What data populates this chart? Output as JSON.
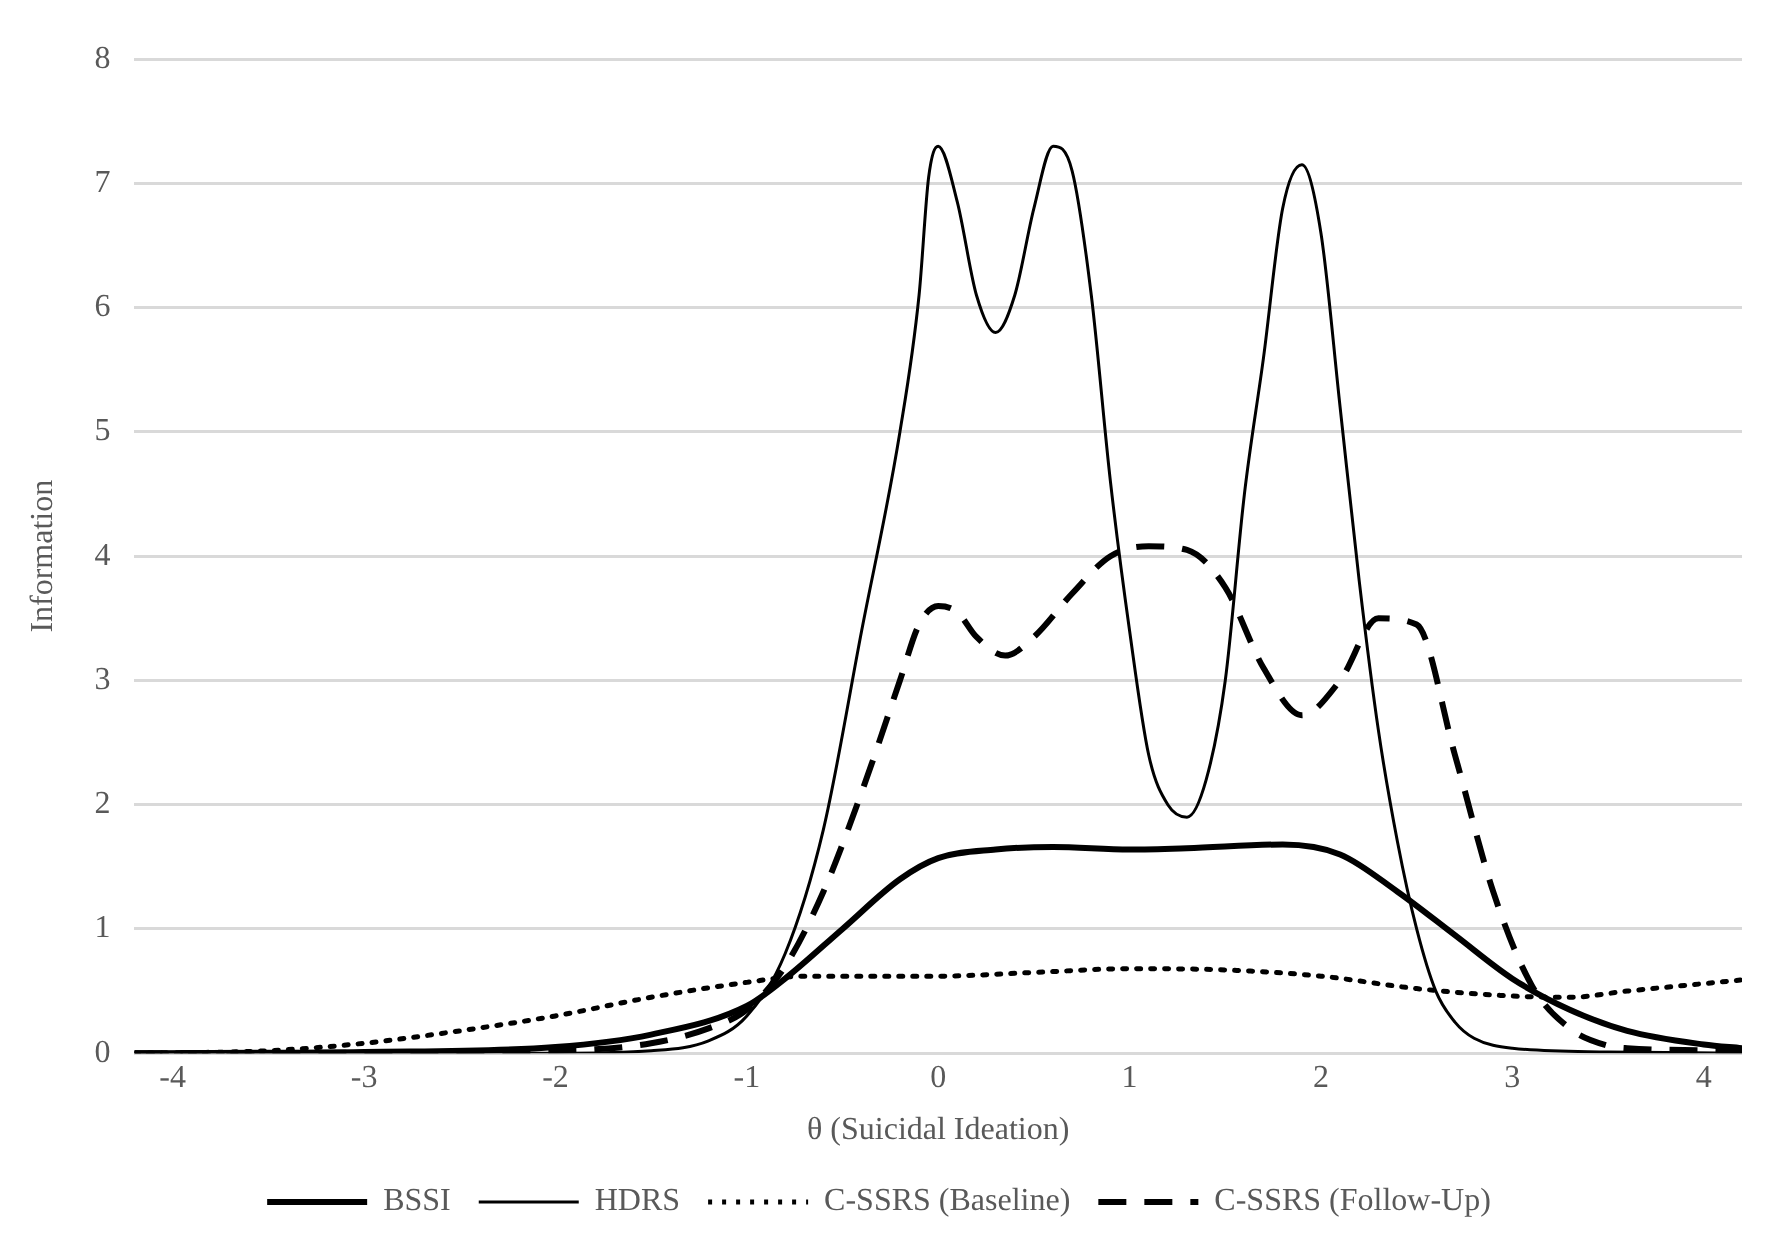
{
  "chart_data": {
    "type": "line",
    "xlabel": "θ (Suicidal Ideation)",
    "ylabel": "Information",
    "xlim": [
      -4.2,
      4.2
    ],
    "xticks": [
      -4,
      -3,
      -2,
      -1,
      0,
      1,
      2,
      3,
      4
    ],
    "ylim": [
      0,
      8
    ],
    "yticks": [
      0,
      1,
      2,
      3,
      4,
      5,
      6,
      7,
      8
    ],
    "grid": "y",
    "legend": "bottom",
    "marker": "none",
    "series": [
      {
        "name": "BSSI",
        "color": "#000000",
        "line_style": "solid",
        "x": [
          -4.2,
          -3,
          -2,
          -1.5,
          -1,
          -0.8,
          -0.5,
          -0.2,
          0,
          0.3,
          0.6,
          1,
          1.3,
          1.8,
          2.1,
          2.4,
          2.7,
          3,
          3.3,
          3.6,
          4,
          4.2
        ],
        "values": [
          0,
          0.01,
          0.05,
          0.15,
          0.38,
          0.6,
          1,
          1.4,
          1.57,
          1.64,
          1.66,
          1.64,
          1.65,
          1.68,
          1.6,
          1.3,
          0.95,
          0.6,
          0.35,
          0.18,
          0.07,
          0.04
        ]
      },
      {
        "name": "HDRS",
        "color": "#000000",
        "line_style": "solid",
        "x": [
          -4.2,
          -2,
          -1.5,
          -1.2,
          -1,
          -0.8,
          -0.6,
          -0.4,
          -0.2,
          -0.1,
          -0.05,
          0,
          0.1,
          0.2,
          0.3,
          0.4,
          0.5,
          0.6,
          0.7,
          0.8,
          0.9,
          1,
          1.1,
          1.2,
          1.3,
          1.4,
          1.5,
          1.6,
          1.7,
          1.8,
          1.9,
          2,
          2.1,
          2.2,
          2.3,
          2.4,
          2.5,
          2.6,
          2.7,
          2.8,
          3,
          3.5,
          4.2
        ],
        "values": [
          0,
          0,
          0.02,
          0.1,
          0.3,
          0.8,
          1.8,
          3.4,
          5,
          6.1,
          7.05,
          7.3,
          6.85,
          6.1,
          5.8,
          6.1,
          6.8,
          7.3,
          7.1,
          6.1,
          4.6,
          3.4,
          2.4,
          2,
          1.9,
          2.2,
          3,
          4.5,
          5.6,
          6.8,
          7.15,
          6.6,
          5.2,
          3.8,
          2.6,
          1.7,
          1,
          0.5,
          0.25,
          0.12,
          0.04,
          0.01,
          0
        ]
      },
      {
        "name": "C-SSRS (Baseline)",
        "color": "#000000",
        "line_style": "dotted",
        "x": [
          -4.2,
          -3.5,
          -3,
          -2.5,
          -2,
          -1.5,
          -1,
          -0.7,
          0,
          0.5,
          1,
          1.5,
          2,
          2.5,
          3,
          3.3,
          3.6,
          4,
          4.2
        ],
        "values": [
          0,
          0.02,
          0.08,
          0.18,
          0.3,
          0.45,
          0.57,
          0.62,
          0.62,
          0.65,
          0.68,
          0.67,
          0.62,
          0.52,
          0.46,
          0.45,
          0.5,
          0.56,
          0.59
        ]
      },
      {
        "name": "C-SSRS (Follow-Up)",
        "color": "#000000",
        "line_style": "dashed",
        "x": [
          -4.2,
          -2,
          -1.5,
          -1.2,
          -1,
          -0.8,
          -0.6,
          -0.4,
          -0.2,
          -0.1,
          0,
          0.1,
          0.2,
          0.35,
          0.5,
          0.7,
          0.9,
          1.1,
          1.3,
          1.5,
          1.7,
          1.9,
          2.1,
          2.3,
          2.5,
          2.7,
          2.9,
          3.1,
          3.3,
          3.5,
          3.6,
          4.2
        ],
        "values": [
          0,
          0.02,
          0.08,
          0.2,
          0.35,
          0.7,
          1.3,
          2.1,
          3,
          3.45,
          3.6,
          3.55,
          3.35,
          3.2,
          3.35,
          3.7,
          4,
          4.08,
          4.05,
          3.75,
          3.1,
          2.72,
          3,
          3.5,
          3.45,
          2.4,
          1.3,
          0.55,
          0.2,
          0.06,
          0.04,
          0.02
        ]
      }
    ]
  }
}
